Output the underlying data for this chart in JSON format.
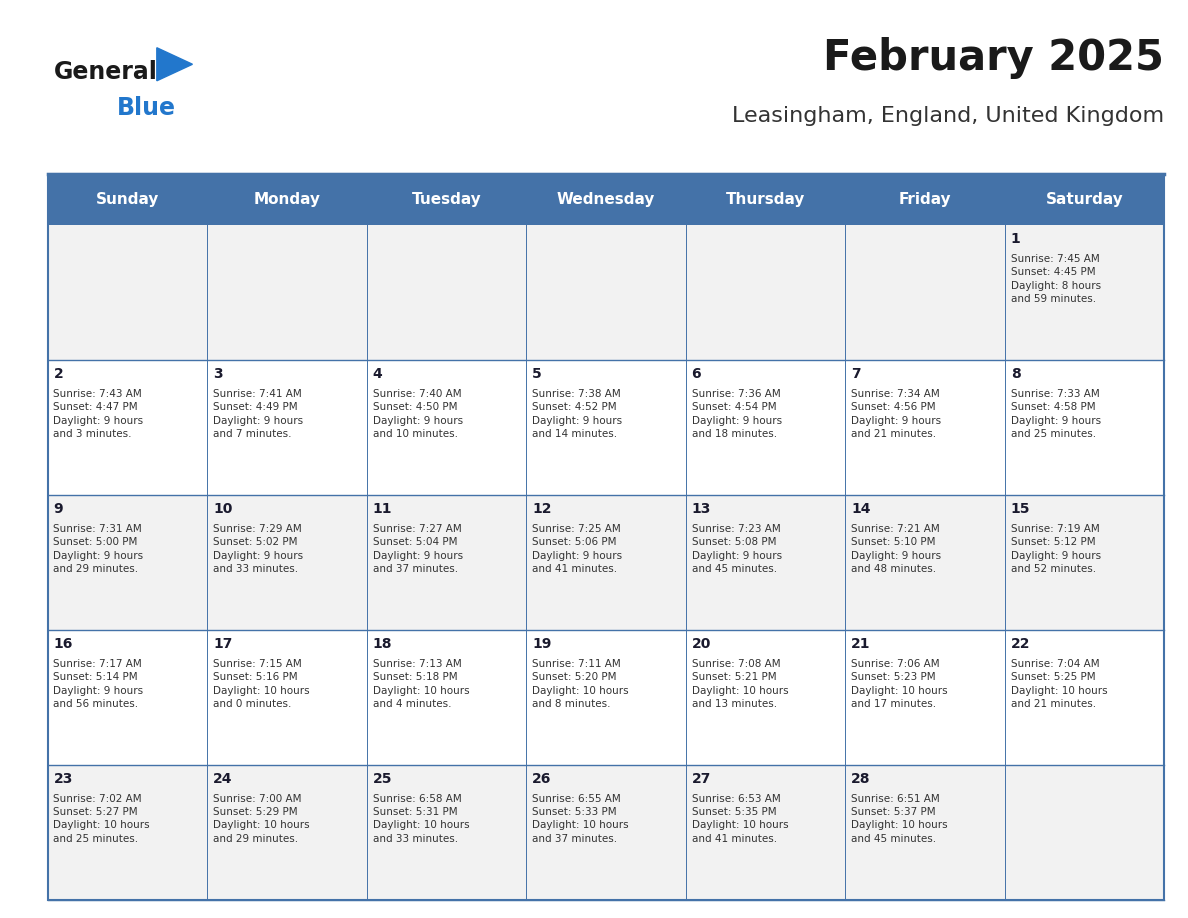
{
  "title": "February 2025",
  "subtitle": "Leasingham, England, United Kingdom",
  "days_of_week": [
    "Sunday",
    "Monday",
    "Tuesday",
    "Wednesday",
    "Thursday",
    "Friday",
    "Saturday"
  ],
  "header_bg": "#4472a8",
  "header_text_color": "#ffffff",
  "odd_row_bg": "#f2f2f2",
  "even_row_bg": "#ffffff",
  "cell_text_color": "#333333",
  "day_num_color": "#1a1a2e",
  "border_color": "#4472a8",
  "title_color": "#1a1a1a",
  "subtitle_color": "#333333",
  "logo_general_color": "#1a1a1a",
  "logo_blue_color": "#2277cc",
  "logo_triangle_color": "#2277cc",
  "calendar_data": [
    [
      {
        "day": null,
        "info": null
      },
      {
        "day": null,
        "info": null
      },
      {
        "day": null,
        "info": null
      },
      {
        "day": null,
        "info": null
      },
      {
        "day": null,
        "info": null
      },
      {
        "day": null,
        "info": null
      },
      {
        "day": 1,
        "info": "Sunrise: 7:45 AM\nSunset: 4:45 PM\nDaylight: 8 hours\nand 59 minutes."
      }
    ],
    [
      {
        "day": 2,
        "info": "Sunrise: 7:43 AM\nSunset: 4:47 PM\nDaylight: 9 hours\nand 3 minutes."
      },
      {
        "day": 3,
        "info": "Sunrise: 7:41 AM\nSunset: 4:49 PM\nDaylight: 9 hours\nand 7 minutes."
      },
      {
        "day": 4,
        "info": "Sunrise: 7:40 AM\nSunset: 4:50 PM\nDaylight: 9 hours\nand 10 minutes."
      },
      {
        "day": 5,
        "info": "Sunrise: 7:38 AM\nSunset: 4:52 PM\nDaylight: 9 hours\nand 14 minutes."
      },
      {
        "day": 6,
        "info": "Sunrise: 7:36 AM\nSunset: 4:54 PM\nDaylight: 9 hours\nand 18 minutes."
      },
      {
        "day": 7,
        "info": "Sunrise: 7:34 AM\nSunset: 4:56 PM\nDaylight: 9 hours\nand 21 minutes."
      },
      {
        "day": 8,
        "info": "Sunrise: 7:33 AM\nSunset: 4:58 PM\nDaylight: 9 hours\nand 25 minutes."
      }
    ],
    [
      {
        "day": 9,
        "info": "Sunrise: 7:31 AM\nSunset: 5:00 PM\nDaylight: 9 hours\nand 29 minutes."
      },
      {
        "day": 10,
        "info": "Sunrise: 7:29 AM\nSunset: 5:02 PM\nDaylight: 9 hours\nand 33 minutes."
      },
      {
        "day": 11,
        "info": "Sunrise: 7:27 AM\nSunset: 5:04 PM\nDaylight: 9 hours\nand 37 minutes."
      },
      {
        "day": 12,
        "info": "Sunrise: 7:25 AM\nSunset: 5:06 PM\nDaylight: 9 hours\nand 41 minutes."
      },
      {
        "day": 13,
        "info": "Sunrise: 7:23 AM\nSunset: 5:08 PM\nDaylight: 9 hours\nand 45 minutes."
      },
      {
        "day": 14,
        "info": "Sunrise: 7:21 AM\nSunset: 5:10 PM\nDaylight: 9 hours\nand 48 minutes."
      },
      {
        "day": 15,
        "info": "Sunrise: 7:19 AM\nSunset: 5:12 PM\nDaylight: 9 hours\nand 52 minutes."
      }
    ],
    [
      {
        "day": 16,
        "info": "Sunrise: 7:17 AM\nSunset: 5:14 PM\nDaylight: 9 hours\nand 56 minutes."
      },
      {
        "day": 17,
        "info": "Sunrise: 7:15 AM\nSunset: 5:16 PM\nDaylight: 10 hours\nand 0 minutes."
      },
      {
        "day": 18,
        "info": "Sunrise: 7:13 AM\nSunset: 5:18 PM\nDaylight: 10 hours\nand 4 minutes."
      },
      {
        "day": 19,
        "info": "Sunrise: 7:11 AM\nSunset: 5:20 PM\nDaylight: 10 hours\nand 8 minutes."
      },
      {
        "day": 20,
        "info": "Sunrise: 7:08 AM\nSunset: 5:21 PM\nDaylight: 10 hours\nand 13 minutes."
      },
      {
        "day": 21,
        "info": "Sunrise: 7:06 AM\nSunset: 5:23 PM\nDaylight: 10 hours\nand 17 minutes."
      },
      {
        "day": 22,
        "info": "Sunrise: 7:04 AM\nSunset: 5:25 PM\nDaylight: 10 hours\nand 21 minutes."
      }
    ],
    [
      {
        "day": 23,
        "info": "Sunrise: 7:02 AM\nSunset: 5:27 PM\nDaylight: 10 hours\nand 25 minutes."
      },
      {
        "day": 24,
        "info": "Sunrise: 7:00 AM\nSunset: 5:29 PM\nDaylight: 10 hours\nand 29 minutes."
      },
      {
        "day": 25,
        "info": "Sunrise: 6:58 AM\nSunset: 5:31 PM\nDaylight: 10 hours\nand 33 minutes."
      },
      {
        "day": 26,
        "info": "Sunrise: 6:55 AM\nSunset: 5:33 PM\nDaylight: 10 hours\nand 37 minutes."
      },
      {
        "day": 27,
        "info": "Sunrise: 6:53 AM\nSunset: 5:35 PM\nDaylight: 10 hours\nand 41 minutes."
      },
      {
        "day": 28,
        "info": "Sunrise: 6:51 AM\nSunset: 5:37 PM\nDaylight: 10 hours\nand 45 minutes."
      },
      {
        "day": null,
        "info": null
      }
    ]
  ]
}
